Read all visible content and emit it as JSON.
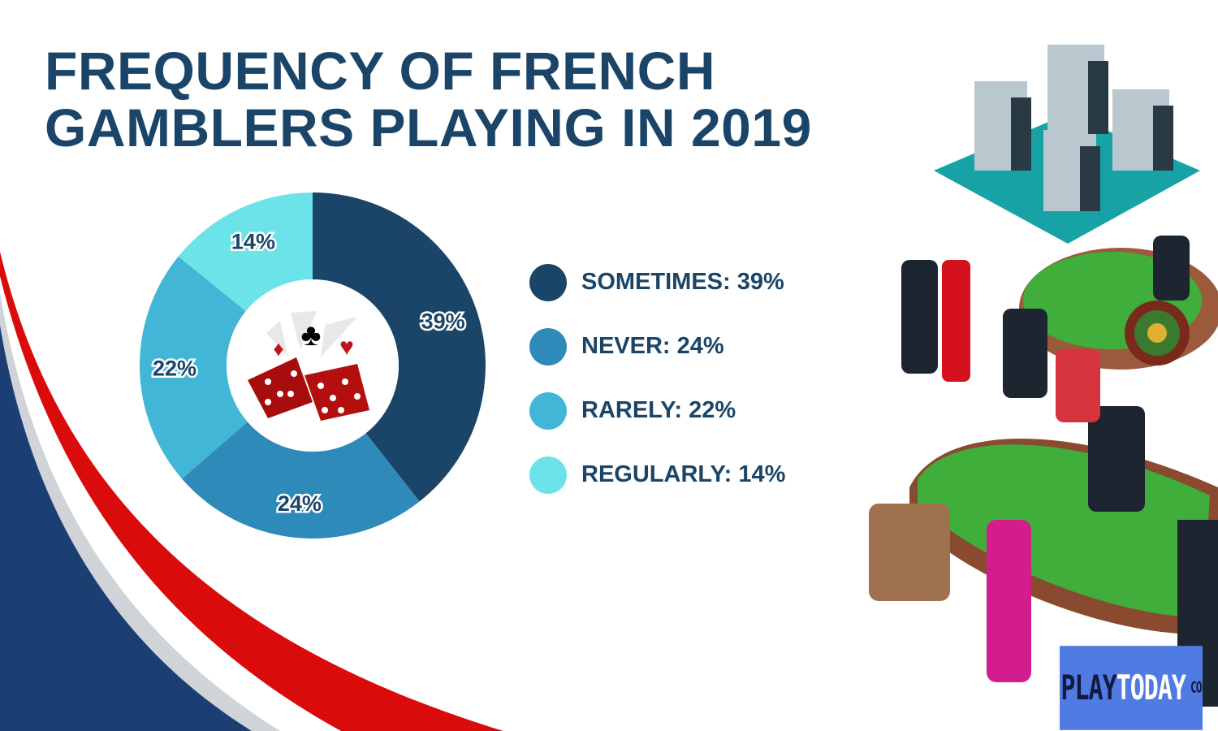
{
  "title_lines": [
    "FREQUENCY OF FRENCH",
    "GAMBLERS PLAYING IN 2019"
  ],
  "chart_data": {
    "type": "pie",
    "variant": "donut",
    "title": "FREQUENCY OF FRENCH GAMBLERS PLAYING IN 2019",
    "categories": [
      "Sometimes",
      "Never",
      "Rarely",
      "Regularly"
    ],
    "values": [
      39,
      24,
      22,
      14
    ],
    "unit": "%",
    "data_labels": [
      "39%",
      "24%",
      "22%",
      "14%"
    ],
    "colors": [
      "#1b4568",
      "#2e8ab8",
      "#42b6d6",
      "#6be3e8"
    ],
    "legend_placement": "right"
  },
  "legend": [
    {
      "label": "SOMETIMES: 39%",
      "color": "#1b4568"
    },
    {
      "label": "NEVER: 24%",
      "color": "#2e8ab8"
    },
    {
      "label": "RARELY: 22%",
      "color": "#42b6d6"
    },
    {
      "label": "REGULARLY: 14%",
      "color": "#6be3e8"
    }
  ],
  "logo": {
    "part1": "PLAY",
    "part2": "TODAY",
    "part3": "CO"
  }
}
